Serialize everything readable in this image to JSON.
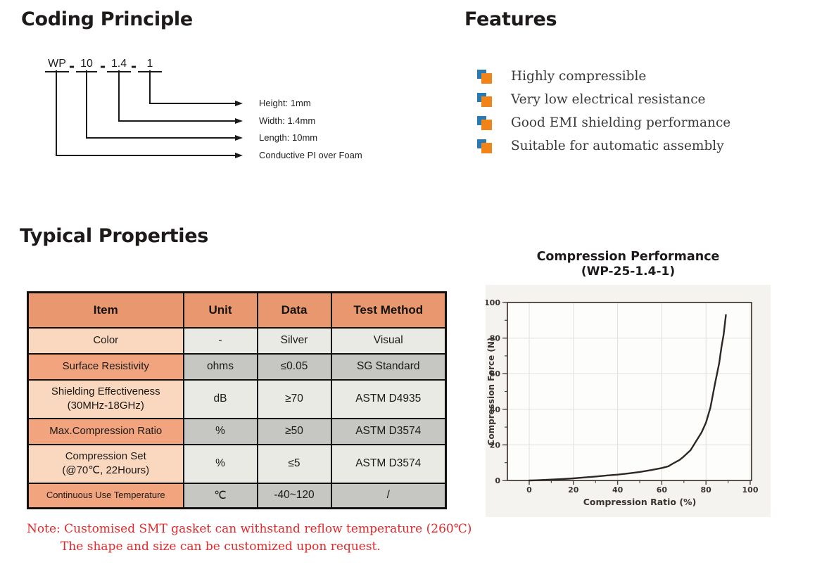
{
  "coding": {
    "title": "Coding Principle",
    "code": [
      "WP",
      "10",
      "1.4",
      "1"
    ],
    "separator": "-",
    "labels": [
      "Height: 1mm",
      "Width: 1.4mm",
      "Length: 10mm",
      "Conductive PI over Foam"
    ]
  },
  "features": {
    "title": "Features",
    "items": [
      "Highly compressible",
      "Very low electrical resistance",
      "Good EMI shielding performance",
      "Suitable for automatic assembly"
    ],
    "bullet_front_color": "#F08418",
    "bullet_back_color": "#2979B2"
  },
  "properties": {
    "title": "Typical Properties",
    "headers": [
      "Item",
      "Unit",
      "Data",
      "Test Method"
    ],
    "rows": [
      {
        "item_lines": [
          "Color"
        ],
        "unit": "-",
        "data": "Silver",
        "method": "Visual"
      },
      {
        "item_lines": [
          "Surface Resistivity"
        ],
        "unit": "ohms",
        "data": "≤0.05",
        "method": "SG Standard"
      },
      {
        "item_lines": [
          "Shielding Effectiveness",
          "(30MHz-18GHz)"
        ],
        "unit": "dB",
        "data": "≥70",
        "method": "ASTM D4935"
      },
      {
        "item_lines": [
          "Max.Compression Ratio"
        ],
        "unit": "%",
        "data": "≥50",
        "method": "ASTM D3574"
      },
      {
        "item_lines": [
          "Compression Set",
          "(@70℃, 22Hours)"
        ],
        "unit": "%",
        "data": "≤5",
        "method": "ASTM D3574"
      },
      {
        "item_lines": [
          "Continuous Use Temperature"
        ],
        "unit": "℃",
        "data": "-40~120",
        "method": "/"
      }
    ],
    "colors": {
      "header": "#E9976F",
      "item_light": "#FAD8BF",
      "item_dark": "#F1A47D",
      "cell_light": "#EAEAE4",
      "cell_dark": "#C6C6C2"
    }
  },
  "note": {
    "line1": "Note: Customised SMT gasket can withstand reflow temperature (260℃)",
    "line2": "The shape and size can be customized upon request.",
    "color": "#E3282A"
  },
  "chart_data": {
    "type": "line",
    "title_line1": "Compression Performance",
    "title_line2": "(WP-25-1.4-1)",
    "xlabel": "Compression Ratio (%)",
    "ylabel": "Compression Force (N)",
    "xlim": [
      0,
      100
    ],
    "ylim": [
      0,
      100
    ],
    "xticks": [
      0,
      20,
      40,
      60,
      80,
      100
    ],
    "yticks": [
      0,
      20,
      40,
      60,
      80,
      100
    ],
    "minor_ticks": [
      10,
      30,
      50,
      70,
      90
    ],
    "grid": true,
    "legend": "none",
    "series": [
      {
        "name": "WP-25-1.4-1",
        "points": [
          [
            0,
            0
          ],
          [
            5,
            0.2
          ],
          [
            10,
            0.5
          ],
          [
            15,
            0.8
          ],
          [
            20,
            1.2
          ],
          [
            25,
            1.7
          ],
          [
            30,
            2.2
          ],
          [
            35,
            2.8
          ],
          [
            40,
            3.3
          ],
          [
            45,
            4.0
          ],
          [
            50,
            4.8
          ],
          [
            55,
            5.8
          ],
          [
            60,
            7.0
          ],
          [
            63,
            8.0
          ],
          [
            65,
            9.5
          ],
          [
            68,
            11.5
          ],
          [
            70,
            13.5
          ],
          [
            73,
            17
          ],
          [
            75,
            21
          ],
          [
            78,
            27
          ],
          [
            80,
            32.5
          ],
          [
            82,
            41
          ],
          [
            84,
            54
          ],
          [
            86,
            66
          ],
          [
            87,
            75
          ],
          [
            88,
            82
          ],
          [
            89,
            93
          ]
        ]
      }
    ]
  }
}
